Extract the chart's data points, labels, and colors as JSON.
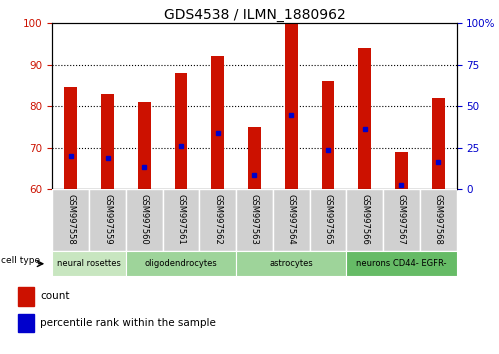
{
  "title": "GDS4538 / ILMN_1880962",
  "samples": [
    "GSM997558",
    "GSM997559",
    "GSM997560",
    "GSM997561",
    "GSM997562",
    "GSM997563",
    "GSM997564",
    "GSM997565",
    "GSM997566",
    "GSM997567",
    "GSM997568"
  ],
  "red_values": [
    84.5,
    83.0,
    81.0,
    88.0,
    92.0,
    75.0,
    100.0,
    86.0,
    94.0,
    69.0,
    82.0
  ],
  "blue_values": [
    68.0,
    67.5,
    65.5,
    70.5,
    73.5,
    63.5,
    78.0,
    69.5,
    74.5,
    61.0,
    66.5
  ],
  "ylim_left": [
    60,
    100
  ],
  "ylim_right": [
    0,
    100
  ],
  "yticks_left": [
    60,
    70,
    80,
    90,
    100
  ],
  "yticks_right": [
    0,
    25,
    50,
    75,
    100
  ],
  "ytick_labels_right": [
    "0",
    "25",
    "50",
    "75",
    "100%"
  ],
  "cell_type_groups": [
    {
      "label": "neural rosettes",
      "start": 0,
      "end": 2,
      "color": "#c8e6c0"
    },
    {
      "label": "oligodendrocytes",
      "start": 2,
      "end": 5,
      "color": "#a0d49a"
    },
    {
      "label": "astrocytes",
      "start": 5,
      "end": 8,
      "color": "#a0d49a"
    },
    {
      "label": "neurons CD44- EGFR-",
      "start": 8,
      "end": 11,
      "color": "#6abf69"
    }
  ],
  "bar_color": "#cc1100",
  "dot_color": "#0000cc",
  "tick_label_color_left": "#cc1100",
  "tick_label_color_right": "#0000cc",
  "bar_width": 0.35,
  "legend_count_label": "count",
  "legend_percentile_label": "percentile rank within the sample"
}
